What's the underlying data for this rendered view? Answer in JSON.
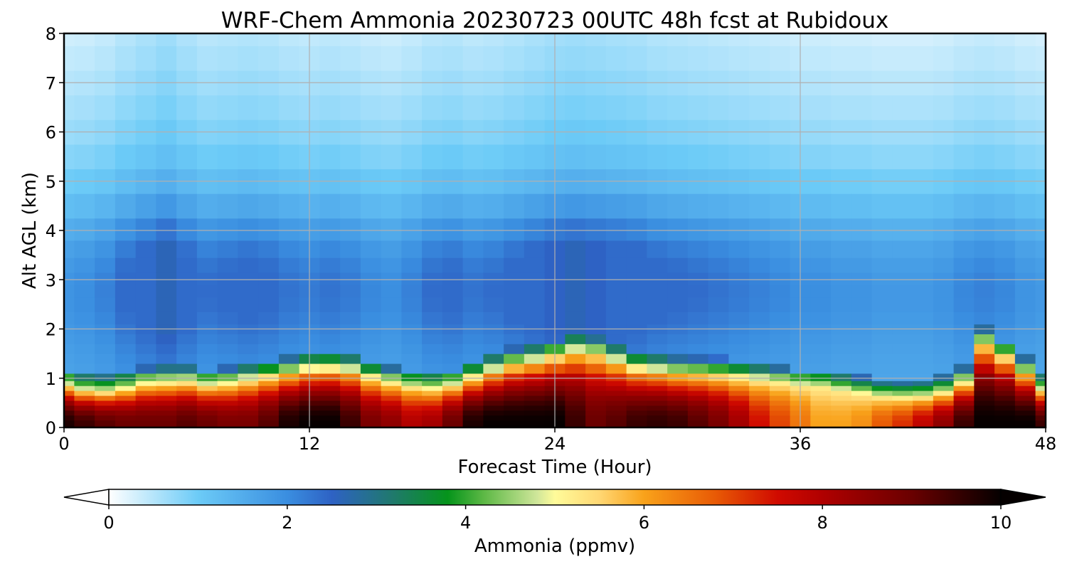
{
  "chart_data": {
    "type": "heatmap",
    "title": "WRF-Chem Ammonia  20230723 00UTC 48h fcst at Rubidoux",
    "xlabel": "Forecast Time (Hour)",
    "ylabel": "Alt AGL (km)",
    "xlim": [
      0,
      48
    ],
    "ylim": [
      0,
      8
    ],
    "x_ticks": [
      "0",
      "12",
      "24",
      "36",
      "48"
    ],
    "y_ticks": [
      "0",
      "1",
      "2",
      "3",
      "4",
      "5",
      "6",
      "7",
      "8"
    ],
    "grid": true,
    "colorbar": {
      "label": "Ammonia  (ppmv)",
      "range": [
        0,
        10
      ],
      "ticks": [
        "0",
        "2",
        "4",
        "6",
        "8",
        "10"
      ],
      "extend": "both",
      "stops": [
        {
          "value": 0,
          "color": "#ffffff"
        },
        {
          "value": 1,
          "color": "#6ccbf7"
        },
        {
          "value": 2,
          "color": "#3a8ee0"
        },
        {
          "value": 2.5,
          "color": "#2e62c4"
        },
        {
          "value": 3.2,
          "color": "#1f7a6a"
        },
        {
          "value": 3.8,
          "color": "#05941b"
        },
        {
          "value": 4.2,
          "color": "#5cb845"
        },
        {
          "value": 4.8,
          "color": "#cfe69a"
        },
        {
          "value": 5.0,
          "color": "#fffb9a"
        },
        {
          "value": 5.5,
          "color": "#ffd773"
        },
        {
          "value": 6.0,
          "color": "#f9a21a"
        },
        {
          "value": 6.8,
          "color": "#e85a05"
        },
        {
          "value": 7.5,
          "color": "#d00a00"
        },
        {
          "value": 8.0,
          "color": "#b00000"
        },
        {
          "value": 9.0,
          "color": "#6a0000"
        },
        {
          "value": 10.0,
          "color": "#050000"
        }
      ]
    },
    "x": [
      0,
      1,
      2,
      3,
      4,
      5,
      6,
      7,
      8,
      9,
      10,
      11,
      12,
      13,
      14,
      15,
      16,
      17,
      18,
      19,
      20,
      21,
      22,
      23,
      24,
      25,
      26,
      27,
      28,
      29,
      30,
      31,
      32,
      33,
      34,
      35,
      36,
      37,
      38,
      39,
      40,
      41,
      42,
      43,
      44,
      45,
      46,
      47,
      48
    ],
    "y": [
      0,
      0.1,
      0.2,
      0.3,
      0.4,
      0.5,
      0.6,
      0.7,
      0.8,
      0.9,
      1.0,
      1.2,
      1.4,
      1.6,
      1.8,
      2.0,
      2.2,
      2.5,
      2.8,
      3.0,
      3.3,
      3.6,
      4.0,
      4.5,
      5.0,
      5.5,
      6.0,
      6.5,
      7.0,
      7.5,
      8.0
    ],
    "surface_layer": {
      "description_values": "column peak ammonia below top of boundary layer",
      "layer_top_km": [
        0.85,
        0.75,
        0.72,
        0.78,
        0.88,
        0.9,
        0.92,
        0.85,
        0.88,
        0.95,
        1.02,
        1.1,
        1.18,
        1.2,
        1.15,
        1.0,
        0.9,
        0.82,
        0.78,
        0.85,
        1.0,
        1.15,
        1.28,
        1.35,
        1.45,
        1.55,
        1.5,
        1.35,
        1.2,
        1.15,
        1.1,
        1.08,
        1.05,
        1.0,
        0.95,
        0.9,
        0.85,
        0.82,
        0.75,
        0.68,
        0.62,
        0.6,
        0.62,
        0.7,
        0.9,
        1.7,
        1.45,
        1.1,
        0.75
      ],
      "peak_ppmv": [
        9.8,
        9.5,
        9.2,
        9.0,
        9.0,
        9.0,
        9.2,
        9.0,
        8.8,
        8.8,
        9.2,
        9.8,
        10.0,
        10.0,
        9.5,
        8.8,
        8.5,
        8.0,
        8.2,
        9.0,
        9.8,
        10.0,
        10.0,
        10.0,
        10.0,
        9.5,
        9.0,
        9.2,
        9.5,
        9.6,
        9.5,
        9.2,
        8.8,
        8.2,
        7.5,
        7.0,
        6.5,
        6.0,
        6.0,
        6.2,
        6.8,
        7.2,
        7.8,
        8.5,
        9.5,
        10.0,
        10.0,
        10.0,
        9.5
      ]
    },
    "aloft_peak_ppmv": {
      "description_values": "free-troposphere peak ammonia between ~1.5 and ~5 km",
      "values": [
        1.3,
        1.4,
        1.6,
        2.0,
        2.3,
        2.6,
        2.2,
        1.9,
        2.0,
        2.1,
        2.0,
        1.8,
        1.7,
        1.8,
        1.7,
        1.5,
        1.4,
        1.6,
        1.9,
        2.0,
        1.8,
        1.9,
        2.1,
        2.3,
        2.5,
        2.6,
        2.5,
        2.4,
        2.3,
        2.1,
        2.0,
        1.9,
        1.8,
        1.7,
        1.6,
        1.5,
        1.4,
        1.4,
        1.3,
        1.3,
        1.2,
        1.2,
        1.2,
        1.3,
        1.5,
        1.6,
        1.5,
        1.3,
        1.2
      ]
    }
  }
}
